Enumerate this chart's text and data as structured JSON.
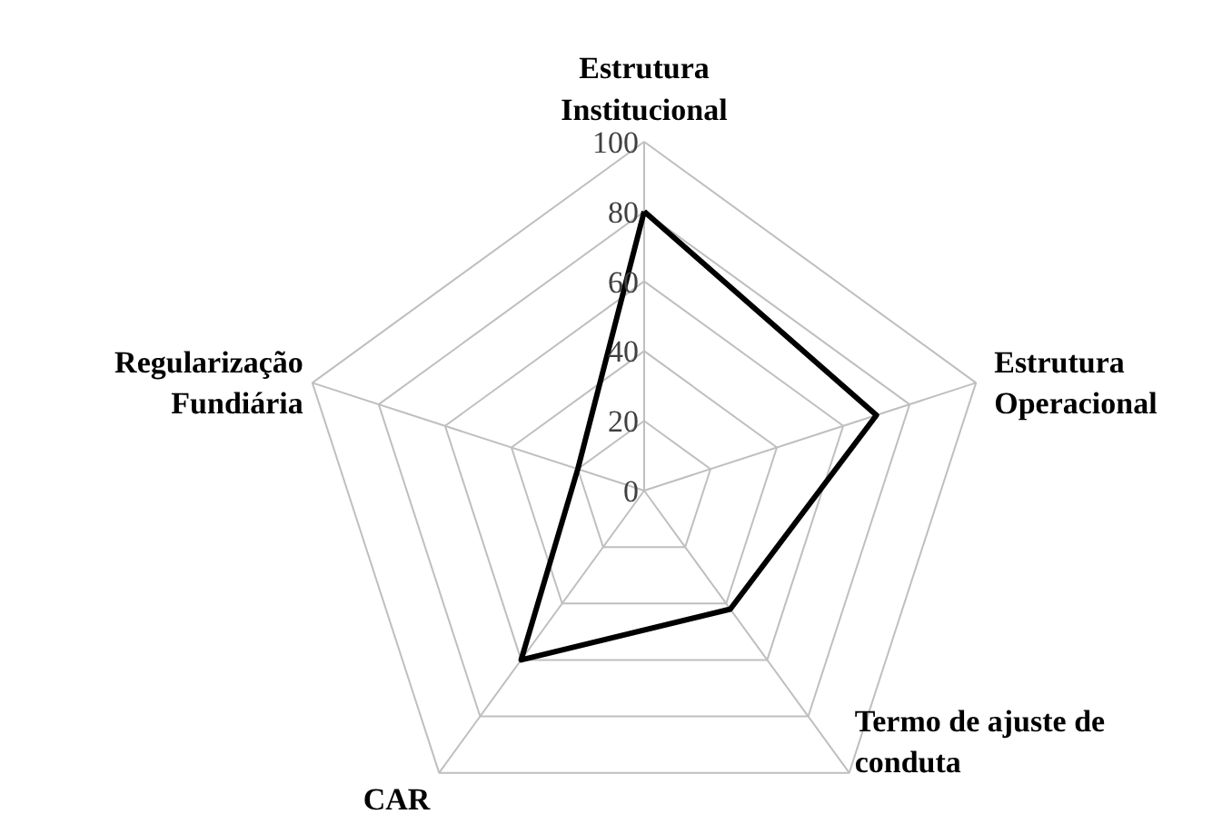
{
  "chart_data": {
    "type": "radar",
    "categories": [
      "Estrutura Institucional",
      "Estrutura Operacional",
      "Termo de ajuste de conduta",
      "CAR",
      "Regularização Fundiária"
    ],
    "series": [
      {
        "color": "#000000",
        "values": [
          80,
          70,
          42,
          60,
          20
        ]
      }
    ],
    "ylim": [
      0,
      100
    ],
    "yticks": [
      0,
      20,
      40,
      60,
      80,
      100
    ],
    "grid": true,
    "marker": "none"
  }
}
